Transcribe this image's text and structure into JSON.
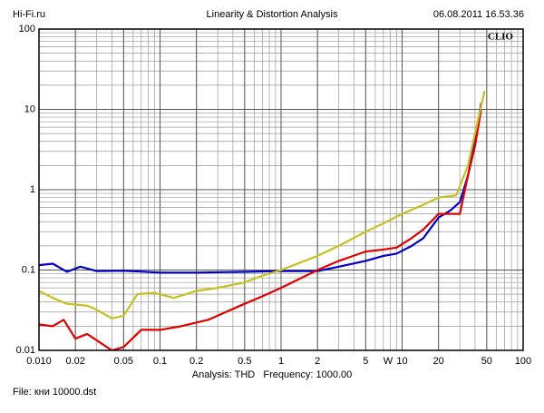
{
  "header": {
    "site": "Hi-Fi.ru",
    "date": "06.08.2011 16.53.36"
  },
  "chart_data": {
    "type": "line",
    "title": "Linearity & Distortion Analysis",
    "brand": "CLIO",
    "x_label": "W",
    "log_x": true,
    "log_y": true,
    "grid": true,
    "xlim": [
      0.01,
      100
    ],
    "ylim": [
      0.01,
      100
    ],
    "xticks": [
      {
        "value": 0.01,
        "label": "0.010"
      },
      0.02,
      0.05,
      0.1,
      0.2,
      0.5,
      1,
      2,
      5,
      10,
      20,
      50,
      100
    ],
    "yticks": [
      0.01,
      0.1,
      1,
      10,
      100
    ],
    "series": [
      {
        "color": "#0000c8",
        "x": [
          0.01,
          0.013,
          0.017,
          0.022,
          0.03,
          0.05,
          0.1,
          0.2,
          0.5,
          1,
          2,
          3,
          5,
          7,
          9,
          12,
          15,
          20,
          25,
          30,
          35,
          40,
          45
        ],
        "values": [
          0.115,
          0.12,
          0.095,
          0.11,
          0.097,
          0.098,
          0.093,
          0.093,
          0.095,
          0.097,
          0.097,
          0.11,
          0.13,
          0.15,
          0.16,
          0.2,
          0.25,
          0.45,
          0.55,
          0.7,
          1.5,
          4,
          12
        ]
      },
      {
        "color": "#e00000",
        "x": [
          0.01,
          0.013,
          0.016,
          0.02,
          0.025,
          0.04,
          0.05,
          0.07,
          0.1,
          0.15,
          0.25,
          0.35,
          0.5,
          0.7,
          1,
          2,
          3,
          5,
          7,
          9,
          12,
          15,
          20,
          30,
          35,
          40,
          45
        ],
        "values": [
          0.021,
          0.02,
          0.024,
          0.014,
          0.016,
          0.01,
          0.011,
          0.018,
          0.018,
          0.02,
          0.024,
          0.03,
          0.038,
          0.047,
          0.06,
          0.1,
          0.13,
          0.17,
          0.18,
          0.19,
          0.25,
          0.32,
          0.5,
          0.5,
          1.5,
          3.5,
          10
        ]
      },
      {
        "color": "#c8c020",
        "x": [
          0.01,
          0.013,
          0.017,
          0.025,
          0.03,
          0.04,
          0.05,
          0.065,
          0.09,
          0.13,
          0.2,
          0.3,
          0.5,
          0.7,
          1,
          2,
          3,
          5,
          7,
          10,
          15,
          20,
          28,
          35,
          40,
          45,
          48
        ],
        "values": [
          0.055,
          0.045,
          0.038,
          0.036,
          0.032,
          0.025,
          0.027,
          0.05,
          0.052,
          0.045,
          0.055,
          0.06,
          0.07,
          0.085,
          0.1,
          0.15,
          0.2,
          0.3,
          0.38,
          0.5,
          0.65,
          0.8,
          0.85,
          2,
          5,
          11,
          17
        ]
      }
    ]
  },
  "footer": {
    "analysis": "Analysis: THD   Frequency: 1000.00",
    "file": "File: кни 10000.dst"
  }
}
